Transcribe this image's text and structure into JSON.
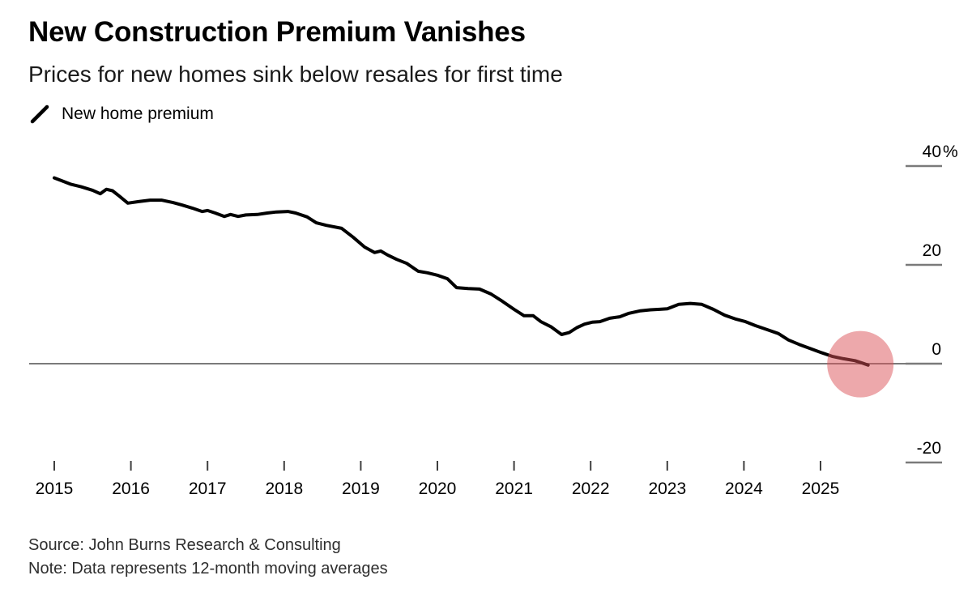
{
  "header": {
    "title": "New Construction Premium Vanishes",
    "subtitle": "Prices for new homes sink below resales for first time"
  },
  "legend": {
    "icon": "line-swatch-icon",
    "label": "New home premium"
  },
  "footer": {
    "source": "Source: John Burns Research & Consulting",
    "note": "Note: Data represents 12-month moving averages"
  },
  "colors": {
    "line": "#000000",
    "highlight": "#DC5158",
    "zero_line": "#7a7a7a",
    "y_tick": "#7a7a7a",
    "x_tick": "#3f3f3f",
    "axis_text": "#000000"
  },
  "chart_data": {
    "type": "line",
    "title": "New Construction Premium Vanishes",
    "xlabel": "",
    "ylabel": "",
    "unit": "%",
    "xlim": [
      2014.7,
      2026.3
    ],
    "ylim": [
      -28,
      47
    ],
    "grid": "none",
    "legend_position": "top-left",
    "x_ticks": [
      "2015",
      "2016",
      "2017",
      "2018",
      "2019",
      "2020",
      "2021",
      "2022",
      "2023",
      "2024",
      "2025"
    ],
    "y_ticks": [
      {
        "value": 40,
        "label": "40",
        "suffix": "%"
      },
      {
        "value": 20,
        "label": "20",
        "suffix": ""
      },
      {
        "value": 0,
        "label": "0",
        "suffix": ""
      },
      {
        "value": -20,
        "label": "-20",
        "suffix": ""
      }
    ],
    "series": [
      {
        "name": "New home premium",
        "points": [
          [
            2015.0,
            37.6
          ],
          [
            2015.1,
            37.0
          ],
          [
            2015.22,
            36.3
          ],
          [
            2015.35,
            35.8
          ],
          [
            2015.5,
            35.1
          ],
          [
            2015.6,
            34.4
          ],
          [
            2015.68,
            35.3
          ],
          [
            2015.76,
            35.0
          ],
          [
            2015.85,
            33.9
          ],
          [
            2015.96,
            32.5
          ],
          [
            2016.1,
            32.8
          ],
          [
            2016.25,
            33.1
          ],
          [
            2016.4,
            33.1
          ],
          [
            2016.55,
            32.6
          ],
          [
            2016.67,
            32.1
          ],
          [
            2016.8,
            31.5
          ],
          [
            2016.93,
            30.8
          ],
          [
            2017.0,
            31.0
          ],
          [
            2017.1,
            30.5
          ],
          [
            2017.22,
            29.8
          ],
          [
            2017.3,
            30.2
          ],
          [
            2017.4,
            29.8
          ],
          [
            2017.5,
            30.1
          ],
          [
            2017.65,
            30.2
          ],
          [
            2017.78,
            30.5
          ],
          [
            2017.9,
            30.7
          ],
          [
            2018.05,
            30.8
          ],
          [
            2018.15,
            30.5
          ],
          [
            2018.3,
            29.7
          ],
          [
            2018.42,
            28.5
          ],
          [
            2018.55,
            28.0
          ],
          [
            2018.75,
            27.4
          ],
          [
            2018.9,
            25.6
          ],
          [
            2019.05,
            23.6
          ],
          [
            2019.18,
            22.5
          ],
          [
            2019.26,
            22.8
          ],
          [
            2019.35,
            22.0
          ],
          [
            2019.47,
            21.1
          ],
          [
            2019.6,
            20.3
          ],
          [
            2019.75,
            18.7
          ],
          [
            2019.87,
            18.4
          ],
          [
            2020.0,
            17.9
          ],
          [
            2020.13,
            17.2
          ],
          [
            2020.25,
            15.4
          ],
          [
            2020.4,
            15.2
          ],
          [
            2020.55,
            15.1
          ],
          [
            2020.7,
            14.1
          ],
          [
            2020.85,
            12.6
          ],
          [
            2021.0,
            11.0
          ],
          [
            2021.13,
            9.7
          ],
          [
            2021.25,
            9.7
          ],
          [
            2021.35,
            8.5
          ],
          [
            2021.48,
            7.5
          ],
          [
            2021.62,
            5.9
          ],
          [
            2021.72,
            6.3
          ],
          [
            2021.82,
            7.3
          ],
          [
            2021.92,
            8.0
          ],
          [
            2022.02,
            8.4
          ],
          [
            2022.12,
            8.5
          ],
          [
            2022.25,
            9.2
          ],
          [
            2022.38,
            9.5
          ],
          [
            2022.5,
            10.2
          ],
          [
            2022.65,
            10.7
          ],
          [
            2022.78,
            10.9
          ],
          [
            2022.9,
            11.0
          ],
          [
            2023.0,
            11.1
          ],
          [
            2023.15,
            12.0
          ],
          [
            2023.3,
            12.2
          ],
          [
            2023.45,
            12.0
          ],
          [
            2023.6,
            11.0
          ],
          [
            2023.75,
            9.8
          ],
          [
            2023.9,
            9.0
          ],
          [
            2024.02,
            8.5
          ],
          [
            2024.15,
            7.7
          ],
          [
            2024.3,
            6.9
          ],
          [
            2024.45,
            6.1
          ],
          [
            2024.58,
            4.8
          ],
          [
            2024.72,
            3.9
          ],
          [
            2024.86,
            3.1
          ],
          [
            2025.0,
            2.3
          ],
          [
            2025.15,
            1.5
          ],
          [
            2025.3,
            1.0
          ],
          [
            2025.45,
            0.6
          ],
          [
            2025.55,
            0.1
          ],
          [
            2025.62,
            -0.3
          ]
        ]
      }
    ],
    "annotations": [
      {
        "type": "circle-highlight",
        "x": 2025.52,
        "y": -0.1,
        "meaning": "new home premium crosses below zero for first time"
      }
    ]
  }
}
